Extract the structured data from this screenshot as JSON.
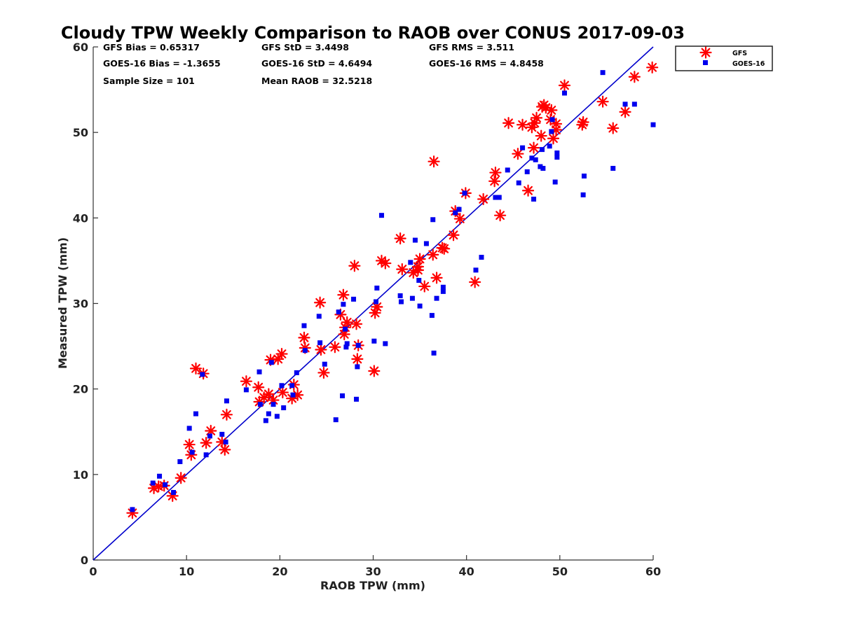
{
  "chart_data": {
    "type": "scatter",
    "title": "Cloudy TPW Weekly Comparison to RAOB over CONUS 2017-09-03",
    "xlabel": "RAOB TPW (mm)",
    "ylabel": "Measured TPW (mm)",
    "xlim": [
      0,
      60
    ],
    "ylim": [
      0,
      60
    ],
    "xticks": [
      "0",
      "10",
      "20",
      "30",
      "40",
      "50",
      "60"
    ],
    "yticks": [
      "0",
      "10",
      "20",
      "30",
      "40",
      "50",
      "60"
    ],
    "grid": false,
    "legend_position": "outside-top-right",
    "reference_line": {
      "x": [
        0,
        60
      ],
      "y": [
        0,
        60
      ],
      "color": "#0000cc"
    },
    "stats": [
      "GFS Bias = 0.65317",
      "GFS StD = 3.4498",
      "GFS RMS = 3.511",
      "GOES-16 Bias = -1.3655",
      "GOES-16 StD = 4.6494",
      "GOES-16 RMS = 4.8458",
      "Sample Size = 101",
      "Mean RAOB = 32.5218"
    ],
    "series": [
      {
        "name": "GFS",
        "marker": "asterisk",
        "color": "#ff0000",
        "x": [
          4.2,
          6.5,
          7.0,
          7.6,
          8.5,
          9.4,
          10.3,
          10.5,
          11.0,
          11.8,
          12.1,
          12.6,
          13.8,
          14.1,
          14.3,
          16.4,
          17.7,
          17.8,
          18.3,
          18.8,
          19.0,
          19.3,
          19.8,
          20.2,
          20.3,
          21.3,
          21.5,
          21.9,
          22.6,
          22.7,
          24.3,
          24.4,
          24.7,
          25.9,
          26.5,
          26.8,
          26.9,
          27.0,
          27.2,
          28.0,
          28.2,
          28.3,
          28.4,
          30.1,
          30.2,
          30.4,
          30.9,
          31.3,
          32.9,
          33.1,
          34.3,
          34.8,
          34.8,
          35.0,
          35.5,
          36.4,
          36.5,
          36.8,
          37.4,
          37.6,
          38.6,
          38.8,
          39.3,
          39.9,
          40.9,
          41.8,
          43.0,
          43.1,
          43.6,
          44.5,
          45.5,
          46.0,
          46.6,
          47.0,
          47.2,
          47.3,
          47.5,
          48.0,
          48.1,
          48.3,
          48.5,
          49.0,
          49.1,
          49.3,
          49.6,
          49.6,
          50.5,
          52.4,
          52.5,
          54.6,
          55.7,
          57.0,
          58.0,
          59.9
        ],
        "y": [
          5.5,
          8.4,
          8.6,
          8.7,
          7.5,
          9.6,
          13.5,
          12.3,
          22.4,
          21.8,
          13.7,
          15.1,
          13.8,
          12.9,
          17.0,
          20.9,
          20.2,
          18.5,
          19.0,
          19.4,
          23.4,
          18.7,
          23.5,
          24.1,
          19.6,
          18.9,
          20.5,
          19.3,
          26.0,
          24.8,
          30.1,
          24.6,
          21.9,
          24.9,
          28.7,
          31.0,
          26.4,
          27.2,
          27.8,
          34.4,
          27.6,
          23.5,
          25.1,
          22.1,
          28.9,
          29.6,
          35.0,
          34.7,
          37.6,
          34.0,
          33.6,
          33.9,
          34.3,
          35.2,
          32.0,
          35.7,
          46.6,
          33.0,
          36.5,
          36.4,
          38.0,
          40.8,
          39.9,
          42.9,
          32.5,
          42.2,
          44.3,
          45.3,
          40.3,
          51.1,
          47.5,
          50.9,
          43.2,
          50.6,
          48.2,
          51.1,
          51.7,
          49.6,
          53.0,
          53.2,
          52.9,
          51.5,
          52.6,
          49.3,
          50.3,
          51.0,
          55.5,
          50.9,
          51.2,
          53.6,
          50.5,
          52.4,
          56.5,
          57.6
        ]
      },
      {
        "name": "GOES-16",
        "marker": "square",
        "color": "#0000ee",
        "x": [
          4.2,
          6.4,
          7.1,
          7.7,
          8.6,
          9.3,
          10.3,
          10.6,
          11.0,
          11.7,
          12.1,
          12.5,
          13.8,
          14.2,
          14.3,
          16.4,
          17.8,
          17.9,
          18.5,
          18.8,
          19.1,
          19.3,
          19.7,
          20.2,
          20.4,
          21.3,
          21.4,
          21.8,
          22.6,
          22.7,
          24.2,
          24.3,
          24.8,
          26.0,
          26.3,
          26.7,
          26.8,
          27.0,
          27.1,
          27.2,
          27.9,
          28.2,
          28.3,
          28.4,
          30.1,
          30.3,
          30.4,
          30.9,
          31.3,
          32.9,
          33.0,
          34.0,
          34.2,
          34.5,
          34.9,
          35.0,
          35.7,
          36.3,
          36.4,
          36.5,
          36.8,
          37.5,
          37.5,
          38.8,
          39.2,
          39.8,
          41.0,
          41.6,
          43.1,
          43.5,
          44.4,
          45.6,
          46.0,
          46.5,
          47.0,
          47.2,
          47.4,
          47.9,
          48.1,
          48.2,
          48.9,
          49.1,
          49.2,
          49.5,
          49.7,
          49.7,
          50.5,
          52.5,
          52.6,
          54.6,
          55.7,
          57.0,
          58.0,
          60.0
        ],
        "y": [
          5.9,
          9.0,
          9.8,
          8.8,
          7.9,
          11.5,
          15.4,
          12.6,
          17.1,
          21.7,
          12.3,
          14.5,
          14.7,
          13.8,
          18.6,
          19.9,
          22.0,
          18.2,
          16.3,
          17.1,
          23.1,
          18.2,
          16.8,
          20.4,
          17.8,
          20.4,
          19.3,
          21.9,
          27.4,
          24.5,
          28.5,
          25.4,
          22.9,
          16.4,
          29.0,
          19.2,
          29.9,
          27.0,
          24.9,
          25.3,
          30.5,
          18.8,
          22.6,
          25.1,
          25.6,
          30.2,
          31.8,
          40.3,
          25.3,
          30.9,
          30.2,
          34.8,
          30.6,
          37.4,
          32.7,
          29.7,
          37.0,
          28.6,
          39.8,
          24.2,
          30.6,
          31.9,
          31.4,
          40.6,
          41.0,
          42.9,
          33.9,
          35.4,
          42.4,
          42.4,
          45.6,
          44.1,
          48.2,
          45.4,
          47.0,
          42.2,
          46.8,
          46.0,
          48.0,
          45.8,
          48.4,
          50.1,
          51.5,
          44.2,
          47.1,
          47.6,
          54.6,
          42.7,
          44.9,
          57.0,
          45.8,
          53.3,
          53.3,
          50.9
        ]
      }
    ]
  }
}
